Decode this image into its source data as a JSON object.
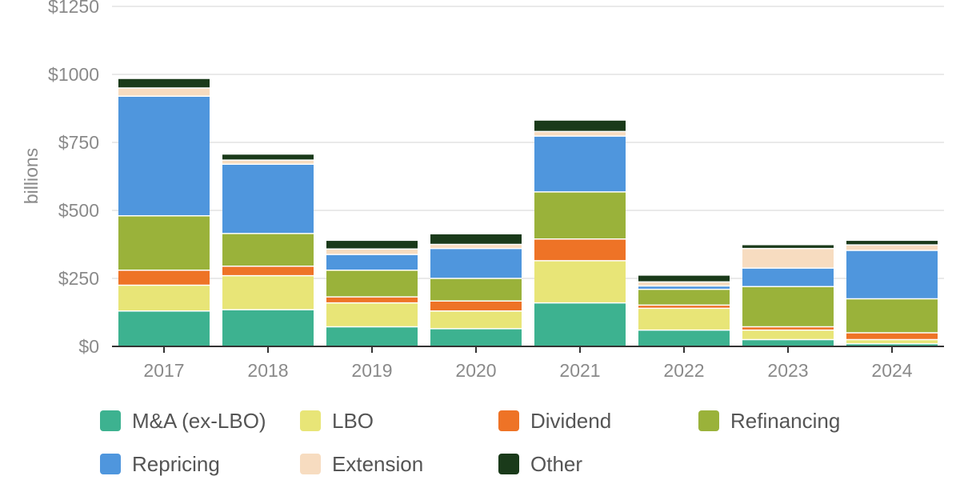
{
  "chart_data": {
    "type": "bar",
    "stacked": true,
    "title": "",
    "xlabel": "",
    "ylabel": "billions",
    "ylim": [
      0,
      1250
    ],
    "yticks": [
      0,
      250,
      500,
      750,
      1000,
      1250
    ],
    "ytick_labels": [
      "$0",
      "$250",
      "$500",
      "$750",
      "$1000",
      "$1250"
    ],
    "categories": [
      "2017",
      "2018",
      "2019",
      "2020",
      "2021",
      "2022",
      "2023",
      "2024"
    ],
    "grid": "horizontal",
    "legend_position": "bottom",
    "series": [
      {
        "name": "M&A (ex-LBO)",
        "color": "#3db290",
        "values": [
          130,
          135,
          72,
          65,
          160,
          60,
          25,
          10
        ]
      },
      {
        "name": "LBO",
        "color": "#e8e577",
        "values": [
          95,
          125,
          88,
          65,
          155,
          80,
          35,
          15
        ]
      },
      {
        "name": "Dividend",
        "color": "#ee7326",
        "values": [
          55,
          35,
          22,
          37,
          80,
          12,
          12,
          25
        ]
      },
      {
        "name": "Refinancing",
        "color": "#9ab23a",
        "values": [
          200,
          120,
          98,
          83,
          173,
          58,
          148,
          125
        ]
      },
      {
        "name": "Repricing",
        "color": "#4f96dd",
        "values": [
          440,
          255,
          58,
          110,
          205,
          12,
          68,
          178
        ]
      },
      {
        "name": "Extension",
        "color": "#f7dcc0",
        "values": [
          30,
          15,
          20,
          15,
          17,
          15,
          72,
          20
        ]
      },
      {
        "name": "Other",
        "color": "#1a3a1a",
        "values": [
          33,
          20,
          30,
          37,
          40,
          23,
          12,
          15
        ]
      }
    ]
  }
}
